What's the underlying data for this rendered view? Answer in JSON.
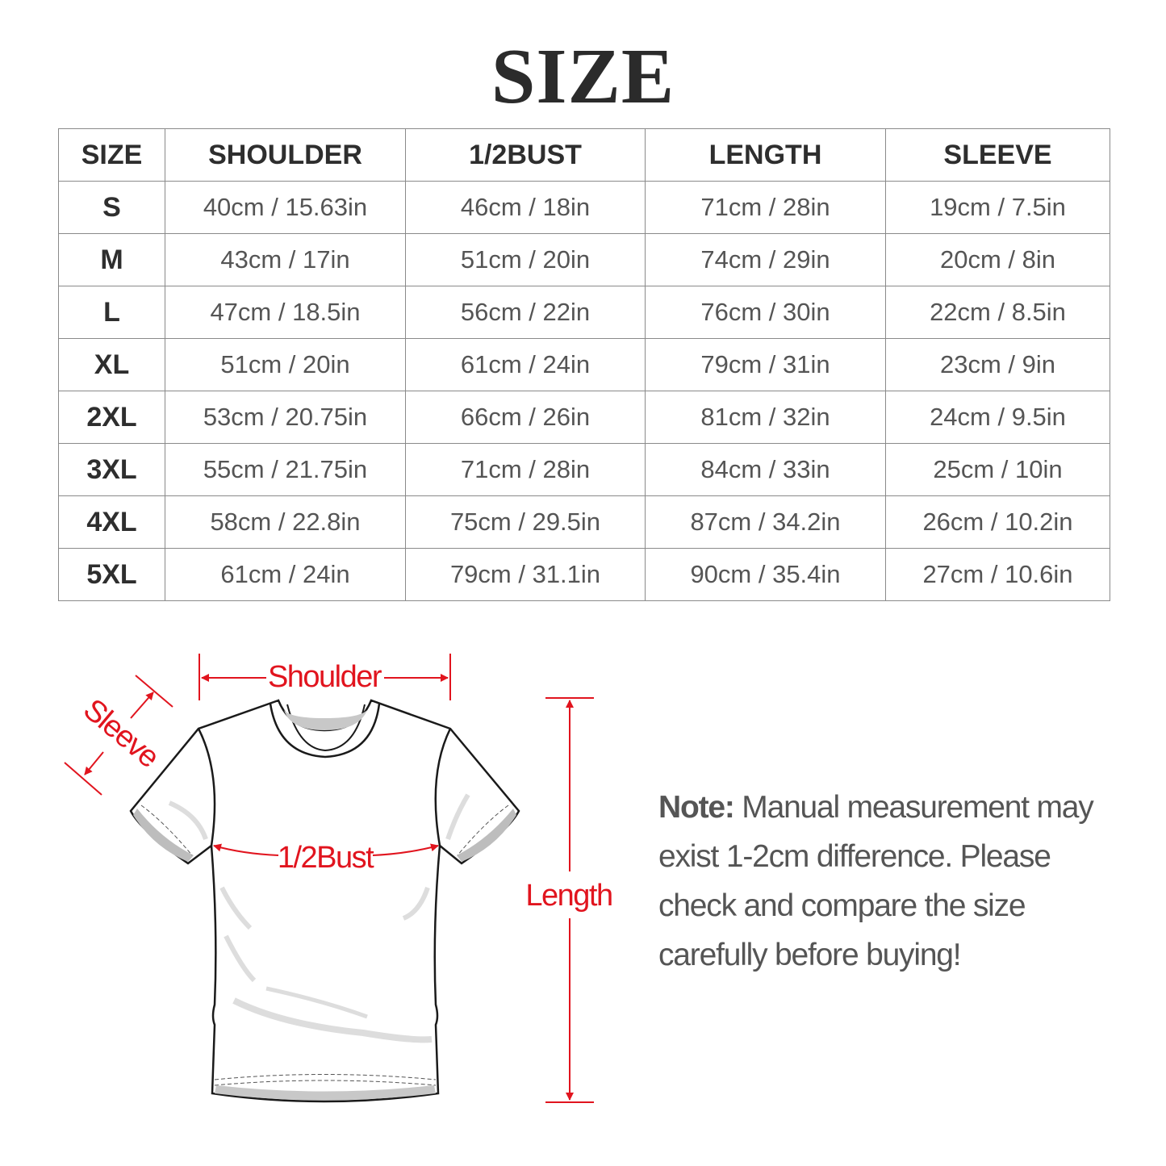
{
  "title": "SIZE",
  "table": {
    "headers": [
      "SIZE",
      "SHOULDER",
      "1/2BUST",
      "LENGTH",
      "SLEEVE"
    ],
    "rows": [
      [
        "S",
        "40cm / 15.63in",
        "46cm / 18in",
        "71cm / 28in",
        "19cm / 7.5in"
      ],
      [
        "M",
        "43cm / 17in",
        "51cm / 20in",
        "74cm / 29in",
        "20cm / 8in"
      ],
      [
        "L",
        "47cm / 18.5in",
        "56cm / 22in",
        "76cm / 30in",
        "22cm / 8.5in"
      ],
      [
        "XL",
        "51cm / 20in",
        "61cm / 24in",
        "79cm / 31in",
        "23cm / 9in"
      ],
      [
        "2XL",
        "53cm / 20.75in",
        "66cm / 26in",
        "81cm / 32in",
        "24cm / 9.5in"
      ],
      [
        "3XL",
        "55cm / 21.75in",
        "71cm / 28in",
        "84cm / 33in",
        "25cm / 10in"
      ],
      [
        "4XL",
        "58cm / 22.8in",
        "75cm / 29.5in",
        "87cm / 34.2in",
        "26cm / 10.2in"
      ],
      [
        "5XL",
        "61cm / 24in",
        "79cm / 31.1in",
        "90cm / 35.4in",
        "27cm / 10.6in"
      ]
    ]
  },
  "diagram": {
    "shoulder_label": "Shoulder",
    "sleeve_label": "Sleeve",
    "bust_label": "1/2Bust",
    "length_label": "Length",
    "accent_color": "#e1141e"
  },
  "note": {
    "label": "Note:",
    "text": " Manual measurement may exist 1-2cm difference. Please check and compare the size carefully before buying!"
  }
}
